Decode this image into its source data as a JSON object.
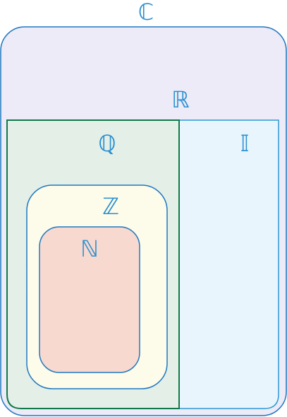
{
  "diagram": {
    "sets": {
      "complex": {
        "symbol": "ℂ",
        "fill": "#ecebf7",
        "stroke": "#1f78c1"
      },
      "real": {
        "symbol": "ℝ"
      },
      "rational": {
        "symbol": "ℚ",
        "fill": "#e4efe8",
        "stroke": "#0f7a47"
      },
      "irrational": {
        "symbol": "𝕀",
        "fill": "#e8f5fc",
        "stroke": "#2a9ad6"
      },
      "integers": {
        "symbol": "ℤ",
        "fill": "#fdfbea",
        "stroke": "#1f78c1"
      },
      "naturals": {
        "symbol": "ℕ",
        "fill": "#f8d9d0",
        "stroke": "#1f78c1"
      }
    },
    "label_color": "#2a8fd0"
  }
}
